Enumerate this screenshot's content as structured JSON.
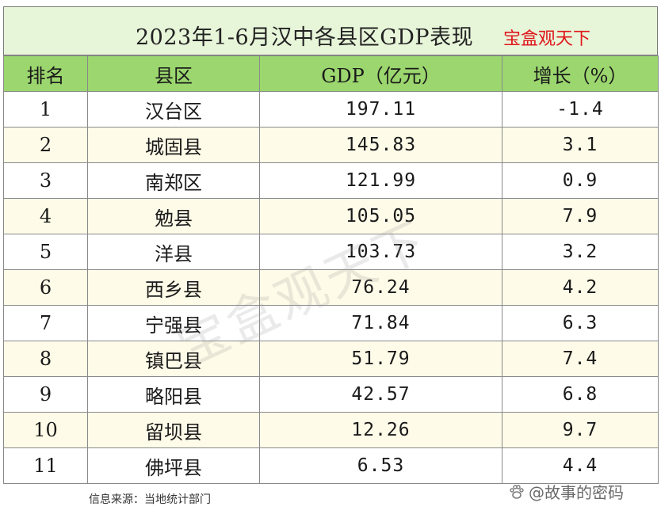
{
  "title": {
    "main": "2023年1-6月汉中各县区GDP表现",
    "brand": "宝盒观天下"
  },
  "headers": {
    "rank": "排名",
    "county": "县区",
    "gdp": "GDP（亿元）",
    "growth": "增长（%）"
  },
  "rows": [
    {
      "rank": "1",
      "county": "汉台区",
      "gdp": "197.11",
      "growth": "-1.4"
    },
    {
      "rank": "2",
      "county": "城固县",
      "gdp": "145.83",
      "growth": "3.1"
    },
    {
      "rank": "3",
      "county": "南郑区",
      "gdp": "121.99",
      "growth": "0.9"
    },
    {
      "rank": "4",
      "county": "勉县",
      "gdp": "105.05",
      "growth": "7.9"
    },
    {
      "rank": "5",
      "county": "洋县",
      "gdp": "103.73",
      "growth": "3.2"
    },
    {
      "rank": "6",
      "county": "西乡县",
      "gdp": "76.24",
      "growth": "4.2"
    },
    {
      "rank": "7",
      "county": "宁强县",
      "gdp": "71.84",
      "growth": "6.3"
    },
    {
      "rank": "8",
      "county": "镇巴县",
      "gdp": "51.79",
      "growth": "7.4"
    },
    {
      "rank": "9",
      "county": "略阳县",
      "gdp": "42.57",
      "growth": "6.8"
    },
    {
      "rank": "10",
      "county": "留坝县",
      "gdp": "12.26",
      "growth": "9.7"
    },
    {
      "rank": "11",
      "county": "佛坪县",
      "gdp": "6.53",
      "growth": "4.4"
    }
  ],
  "watermark": "宝盒观天下",
  "footer": {
    "source": "信息来源：当地统计部门",
    "credit": "@故事的密码",
    "credit_icon": "paw-icon"
  },
  "colors": {
    "title_bg": "#e7f5d9",
    "header_bg": "#9bd66e",
    "alt_row_bg": "#fefbe8",
    "brand": "#e0161b"
  }
}
